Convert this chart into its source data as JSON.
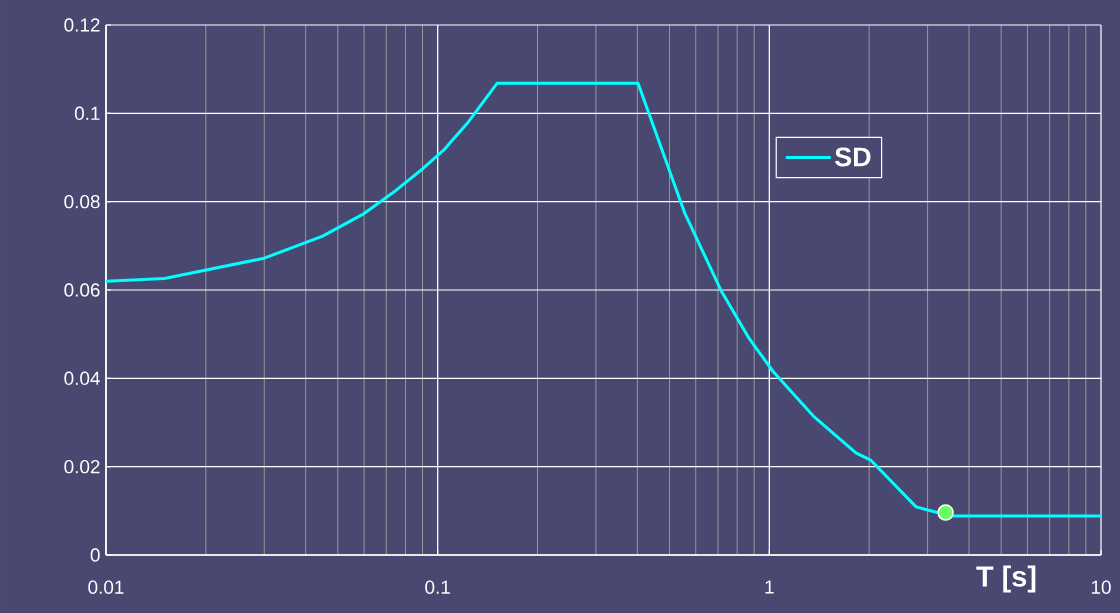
{
  "chart_data": {
    "type": "line",
    "xlabel": "T [s]",
    "log": "x",
    "grid": true,
    "legend": "right",
    "xlim": [
      0.01,
      10
    ],
    "ylim": [
      0,
      0.12
    ],
    "xticks": [
      0.01,
      0.1,
      1,
      10
    ],
    "yticks": [
      0,
      0.02,
      0.04,
      0.06,
      0.08,
      0.1,
      0.12
    ],
    "series": [
      {
        "name": "SD",
        "color": "#00ffff",
        "marker": "none",
        "line_style": "solid",
        "x": [
          0.01,
          0.015,
          0.03,
          0.045,
          0.06,
          0.075,
          0.09,
          0.105,
          0.123,
          0.151,
          0.402,
          0.556,
          0.715,
          0.868,
          1.025,
          1.368,
          1.824,
          2.02,
          2.77,
          3.0,
          3.55,
          10
        ],
        "values": [
          0.062,
          0.0626,
          0.0672,
          0.0722,
          0.0773,
          0.0826,
          0.0874,
          0.0919,
          0.0978,
          0.1068,
          0.1068,
          0.0774,
          0.0599,
          0.0491,
          0.0416,
          0.0312,
          0.0231,
          0.0215,
          0.0109,
          0.0102,
          0.0088,
          0.0088
        ]
      },
      {
        "type": "scatter",
        "color": "#66ff66",
        "marker": "circle",
        "x": [
          3.4
        ],
        "values": [
          0.0096
        ]
      }
    ]
  }
}
